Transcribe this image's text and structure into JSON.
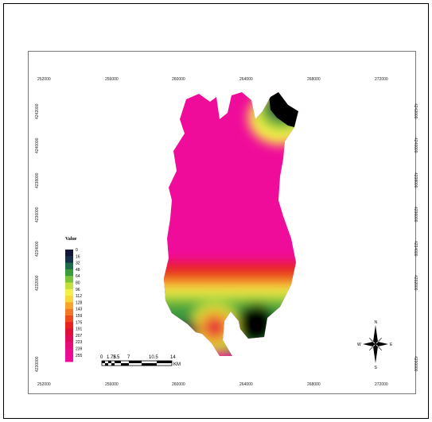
{
  "map": {
    "x_ticks": [
      "252000",
      "256000",
      "260000",
      "264000",
      "268000",
      "272000"
    ],
    "y_ticks": [
      "4242000",
      "4240000",
      "4238000",
      "4236000",
      "4234000",
      "4232000",
      "4230000"
    ]
  },
  "legend": {
    "title": "Value",
    "labels": [
      "0",
      "16",
      "32",
      "48",
      "64",
      "80",
      "96",
      "112",
      "128",
      "143",
      "159",
      "175",
      "191",
      "207",
      "223",
      "239",
      "255"
    ],
    "colors": [
      "#15173a",
      "#16304a",
      "#1d6b4a",
      "#3a9a3c",
      "#7cc23a",
      "#c4e03c",
      "#f4f04a",
      "#f7d83a",
      "#f6a52c",
      "#f27a24",
      "#ee4a1e",
      "#e82022",
      "#e20e3a",
      "#e00c5a",
      "#e60c7a",
      "#eb0c8f",
      "#f00c9a"
    ]
  },
  "scalebar": {
    "labels": [
      "0",
      "1.75",
      "3.5",
      "7",
      "10.5",
      "14"
    ],
    "unit": "KM"
  },
  "north_arrow": {
    "n": "N",
    "s": "S",
    "e": "E",
    "w": "W"
  },
  "colors": {
    "surface": "#f00c9a",
    "nodata": "#000000"
  }
}
